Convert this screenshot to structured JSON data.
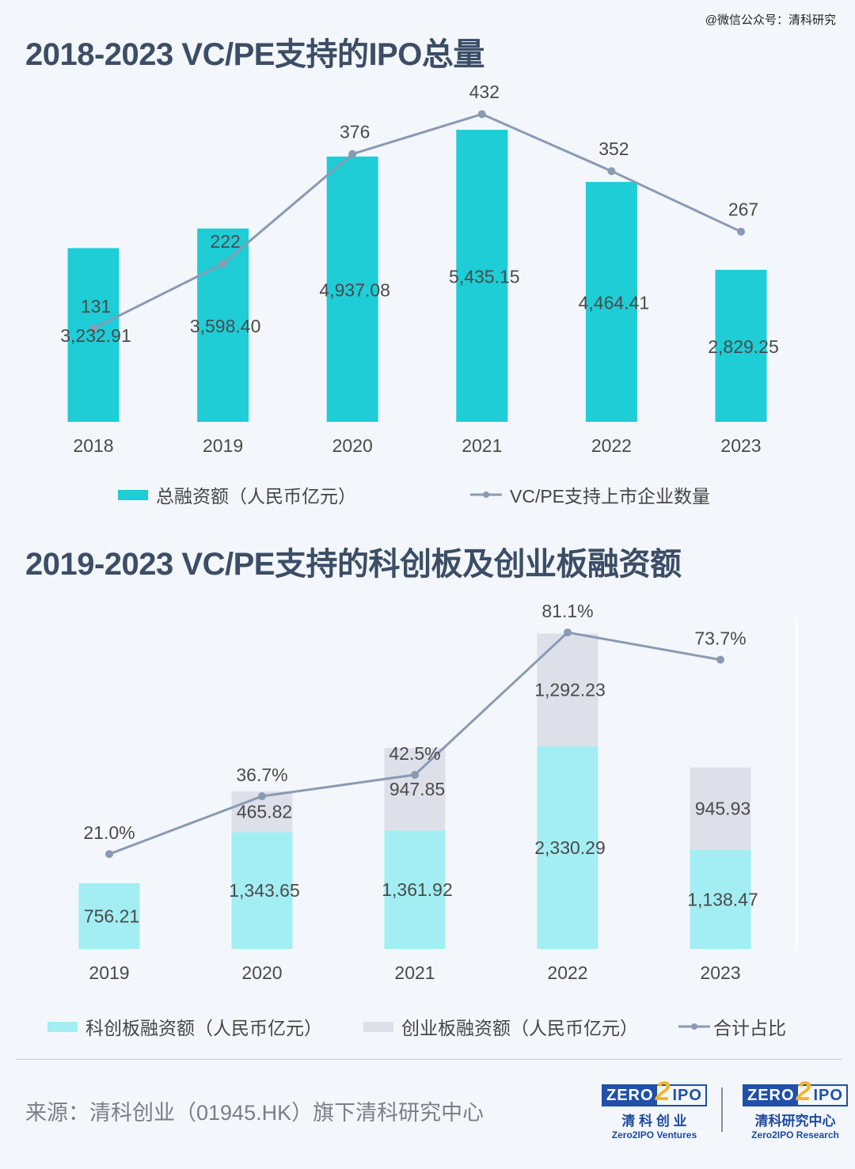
{
  "watermark": "@微信公众号：清科研究",
  "chart_data": [
    {
      "type": "bar+line",
      "title": "2018-2023 VC/PE支持的IPO总量",
      "categories": [
        "2018",
        "2019",
        "2020",
        "2021",
        "2022",
        "2023"
      ],
      "series": [
        {
          "name": "总融资额（人民币亿元）",
          "type": "bar",
          "color": "#1ecdd6",
          "values": [
            3232.91,
            3598.4,
            4937.08,
            5435.15,
            4464.41,
            2829.25
          ],
          "labels": [
            "3,232.91",
            "3,598.40",
            "4,937.08",
            "5,435.15",
            "4,464.41",
            "2,829.25"
          ]
        },
        {
          "name": "VC/PE支持上市企业数量",
          "type": "line",
          "color": "#8a9ab3",
          "values": [
            131,
            222,
            376,
            432,
            352,
            267
          ],
          "labels": [
            "131",
            "222",
            "376",
            "432",
            "352",
            "267"
          ]
        }
      ],
      "legend": "bottom"
    },
    {
      "type": "stacked-bar+line",
      "title": "2019-2023 VC/PE支持的科创板及创业板融资额",
      "categories": [
        "2019",
        "2020",
        "2021",
        "2022",
        "2023"
      ],
      "series": [
        {
          "name": "科创板融资额（人民币亿元）",
          "type": "bar",
          "color": "#a3eef2",
          "values": [
            756.21,
            1343.65,
            1361.92,
            2330.29,
            1138.47
          ],
          "labels": [
            "756.21",
            "1,343.65",
            "1,361.92",
            "2,330.29",
            "1,138.47"
          ]
        },
        {
          "name": "创业板融资额（人民币亿元）",
          "type": "bar",
          "color": "#dde0e9",
          "values": [
            0,
            465.82,
            947.85,
            1292.23,
            945.93
          ],
          "labels": [
            "",
            "465.82",
            "947.85",
            "1,292.23",
            "945.93"
          ]
        },
        {
          "name": "合计占比",
          "type": "line",
          "color": "#8a9ab3",
          "values": [
            21.0,
            36.7,
            42.5,
            81.1,
            73.7
          ],
          "labels": [
            "21.0%",
            "36.7%",
            "42.5%",
            "81.1%",
            "73.7%"
          ]
        }
      ],
      "legend": "bottom"
    }
  ],
  "footer": {
    "source": "来源：清科创业（01945.HK）旗下清科研究中心",
    "logos": [
      {
        "brand": "ZERO2IPO",
        "cn": "清 科 创 业",
        "en": "Zero2IPO Ventures"
      },
      {
        "brand": "ZERO2IPO",
        "cn": "清科研究中心",
        "en": "Zero2IPO Research"
      }
    ]
  }
}
